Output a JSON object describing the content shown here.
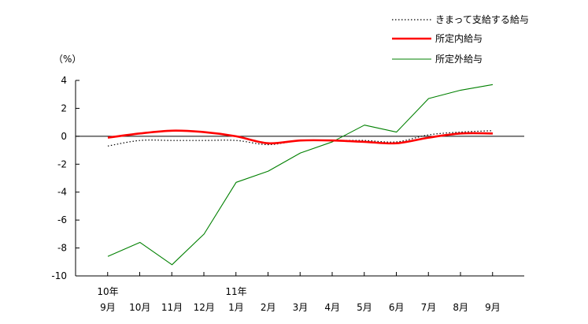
{
  "chart_data": {
    "type": "line",
    "unit_label": "（%）",
    "ylim": [
      -10,
      4
    ],
    "yticks": [
      4,
      2,
      0,
      -2,
      -4,
      -6,
      -8,
      -10
    ],
    "ytick_labels": [
      "4",
      "2",
      "0",
      "-2",
      "-4",
      "-6",
      "-8",
      "-10"
    ],
    "categories": [
      "9月",
      "10月",
      "11月",
      "12月",
      "1月",
      "2月",
      "3月",
      "4月",
      "5月",
      "6月",
      "7月",
      "8月",
      "9月"
    ],
    "year_labels": [
      {
        "index": 0,
        "label": "10年"
      },
      {
        "index": 4,
        "label": "11年"
      }
    ],
    "zero_line": true,
    "grid": false,
    "legend_position": "top-right",
    "series": [
      {
        "name": "きまって支給する給与",
        "style": "dotted",
        "color": "#000000",
        "values": [
          -0.7,
          -0.3,
          -0.3,
          -0.3,
          -0.3,
          -0.6,
          -0.3,
          -0.3,
          -0.3,
          -0.4,
          0.1,
          0.3,
          0.4
        ]
      },
      {
        "name": "所定内給与",
        "style": "solid-thick",
        "color": "#ff0000",
        "values": [
          -0.1,
          0.2,
          0.4,
          0.3,
          0.0,
          -0.5,
          -0.3,
          -0.3,
          -0.4,
          -0.5,
          -0.1,
          0.2,
          0.2
        ]
      },
      {
        "name": "所定外給与",
        "style": "solid-thin",
        "color": "#008000",
        "values": [
          -8.6,
          -7.6,
          -9.2,
          -7.0,
          -3.3,
          -2.5,
          -1.2,
          -0.4,
          0.8,
          0.3,
          2.7,
          3.3,
          3.7
        ]
      }
    ]
  }
}
